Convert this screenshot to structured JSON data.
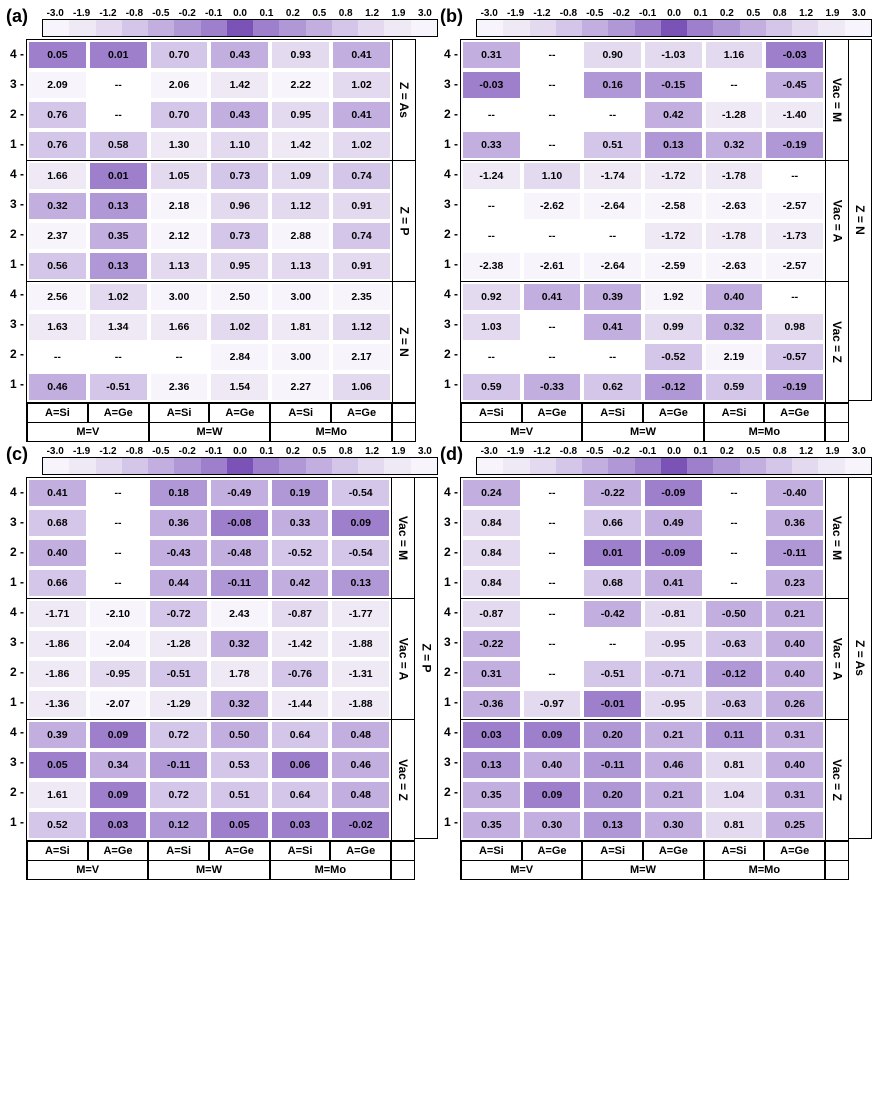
{
  "colorbar": {
    "ticks": [
      "-3.0",
      "-1.9",
      "-1.2",
      "-0.8",
      "-0.5",
      "-0.2",
      "-0.1",
      "0.0",
      "0.1",
      "0.2",
      "0.5",
      "0.8",
      "1.2",
      "1.9",
      "3.0"
    ],
    "colors": [
      "#f7f4fb",
      "#efe9f6",
      "#e3daf0",
      "#d4c6e8",
      "#c2afdf",
      "#b097d5",
      "#9d7fcb",
      "#7b53b6",
      "#9d7fcb",
      "#b097d5",
      "#c2afdf",
      "#d4c6e8",
      "#e3daf0",
      "#efe9f6",
      "#f7f4fb"
    ]
  },
  "axis": {
    "ylabels": [
      "4",
      "3",
      "2",
      "1"
    ],
    "xA": [
      "A=Si",
      "A=Ge",
      "A=Si",
      "A=Ge",
      "A=Si",
      "A=Ge"
    ],
    "xM": [
      "M=V",
      "M=W",
      "M=Mo"
    ]
  },
  "panels": [
    {
      "id": "a",
      "label": "(a)",
      "outer_right": null,
      "blocks": [
        {
          "right": "Z = As",
          "rows": [
            [
              "0.05",
              "0.01",
              "0.70",
              "0.43",
              "0.93",
              "0.41"
            ],
            [
              "2.09",
              "--",
              "2.06",
              "1.42",
              "2.22",
              "1.02"
            ],
            [
              "0.76",
              "--",
              "0.70",
              "0.43",
              "0.95",
              "0.41"
            ],
            [
              "0.76",
              "0.58",
              "1.30",
              "1.10",
              "1.42",
              "1.02"
            ]
          ]
        },
        {
          "right": "Z = P",
          "rows": [
            [
              "1.66",
              "0.01",
              "1.05",
              "0.73",
              "1.09",
              "0.74"
            ],
            [
              "0.32",
              "0.13",
              "2.18",
              "0.96",
              "1.12",
              "0.91"
            ],
            [
              "2.37",
              "0.35",
              "2.12",
              "0.73",
              "2.88",
              "0.74"
            ],
            [
              "0.56",
              "0.13",
              "1.13",
              "0.95",
              "1.13",
              "0.91"
            ]
          ]
        },
        {
          "right": "Z = N",
          "rows": [
            [
              "2.56",
              "1.02",
              "3.00",
              "2.50",
              "3.00",
              "2.35"
            ],
            [
              "1.63",
              "1.34",
              "1.66",
              "1.02",
              "1.81",
              "1.12"
            ],
            [
              "--",
              "--",
              "--",
              "2.84",
              "3.00",
              "2.17"
            ],
            [
              "0.46",
              "-0.51",
              "2.36",
              "1.54",
              "2.27",
              "1.06"
            ]
          ]
        }
      ]
    },
    {
      "id": "b",
      "label": "(b)",
      "outer_right": "Z = N",
      "blocks": [
        {
          "right": "Vac = M",
          "rows": [
            [
              "0.31",
              "--",
              "0.90",
              "-1.03",
              "1.16",
              "-0.03"
            ],
            [
              "-0.03",
              "--",
              "0.16",
              "-0.15",
              "--",
              "-0.45"
            ],
            [
              "--",
              "--",
              "--",
              "0.42",
              "-1.28",
              "-1.40"
            ],
            [
              "0.33",
              "--",
              "0.51",
              "0.13",
              "0.32",
              "-0.19"
            ]
          ]
        },
        {
          "right": "Vac = A",
          "rows": [
            [
              "-1.24",
              "1.10",
              "-1.74",
              "-1.72",
              "-1.78",
              "--"
            ],
            [
              "--",
              "-2.62",
              "-2.64",
              "-2.58",
              "-2.63",
              "-2.57"
            ],
            [
              "--",
              "--",
              "--",
              "-1.72",
              "-1.78",
              "-1.73"
            ],
            [
              "-2.38",
              "-2.61",
              "-2.64",
              "-2.59",
              "-2.63",
              "-2.57"
            ]
          ]
        },
        {
          "right": "Vac = Z",
          "rows": [
            [
              "0.92",
              "0.41",
              "0.39",
              "1.92",
              "0.40",
              "--"
            ],
            [
              "1.03",
              "--",
              "0.41",
              "0.99",
              "0.32",
              "0.98"
            ],
            [
              "--",
              "--",
              "--",
              "-0.52",
              "2.19",
              "-0.57"
            ],
            [
              "0.59",
              "-0.33",
              "0.62",
              "-0.12",
              "0.59",
              "-0.19"
            ]
          ]
        }
      ]
    },
    {
      "id": "c",
      "label": "(c)",
      "outer_right": "Z = P",
      "blocks": [
        {
          "right": "Vac = M",
          "rows": [
            [
              "0.41",
              "--",
              "0.18",
              "-0.49",
              "0.19",
              "-0.54"
            ],
            [
              "0.68",
              "--",
              "0.36",
              "-0.08",
              "0.33",
              "0.09"
            ],
            [
              "0.40",
              "--",
              "-0.43",
              "-0.48",
              "-0.52",
              "-0.54"
            ],
            [
              "0.66",
              "--",
              "0.44",
              "-0.11",
              "0.42",
              "0.13"
            ]
          ]
        },
        {
          "right": "Vac = A",
          "rows": [
            [
              "-1.71",
              "-2.10",
              "-0.72",
              "2.43",
              "-0.87",
              "-1.77"
            ],
            [
              "-1.86",
              "-2.04",
              "-1.28",
              "0.32",
              "-1.42",
              "-1.88"
            ],
            [
              "-1.86",
              "-0.95",
              "-0.51",
              "1.78",
              "-0.76",
              "-1.31"
            ],
            [
              "-1.36",
              "-2.07",
              "-1.29",
              "0.32",
              "-1.44",
              "-1.88"
            ]
          ]
        },
        {
          "right": "Vac = Z",
          "rows": [
            [
              "0.39",
              "0.09",
              "0.72",
              "0.50",
              "0.64",
              "0.48"
            ],
            [
              "0.05",
              "0.34",
              "-0.11",
              "0.53",
              "0.06",
              "0.46"
            ],
            [
              "1.61",
              "0.09",
              "0.72",
              "0.51",
              "0.64",
              "0.48"
            ],
            [
              "0.52",
              "0.03",
              "0.12",
              "0.05",
              "0.03",
              "-0.02"
            ]
          ]
        }
      ]
    },
    {
      "id": "d",
      "label": "(d)",
      "outer_right": "Z = As",
      "blocks": [
        {
          "right": "Vac = M",
          "rows": [
            [
              "0.24",
              "--",
              "-0.22",
              "-0.09",
              "--",
              "-0.40"
            ],
            [
              "0.84",
              "--",
              "0.66",
              "0.49",
              "--",
              "0.36"
            ],
            [
              "0.84",
              "--",
              "0.01",
              "-0.09",
              "--",
              "-0.11"
            ],
            [
              "0.84",
              "--",
              "0.68",
              "0.41",
              "--",
              "0.23"
            ]
          ]
        },
        {
          "right": "Vac = A",
          "rows": [
            [
              "-0.87",
              "--",
              "-0.42",
              "-0.81",
              "-0.50",
              "0.21"
            ],
            [
              "-0.22",
              "--",
              "--",
              "-0.95",
              "-0.63",
              "0.40"
            ],
            [
              "0.31",
              "--",
              "-0.51",
              "-0.71",
              "-0.12",
              "0.40"
            ],
            [
              "-0.36",
              "-0.97",
              "-0.01",
              "-0.95",
              "-0.63",
              "0.26"
            ]
          ]
        },
        {
          "right": "Vac = Z",
          "rows": [
            [
              "0.03",
              "0.09",
              "0.20",
              "0.21",
              "0.11",
              "0.31"
            ],
            [
              "0.13",
              "0.40",
              "-0.11",
              "0.46",
              "0.81",
              "0.40"
            ],
            [
              "0.35",
              "0.09",
              "0.20",
              "0.21",
              "1.04",
              "0.31"
            ],
            [
              "0.35",
              "0.30",
              "0.13",
              "0.30",
              "0.81",
              "0.25"
            ]
          ]
        }
      ]
    }
  ]
}
